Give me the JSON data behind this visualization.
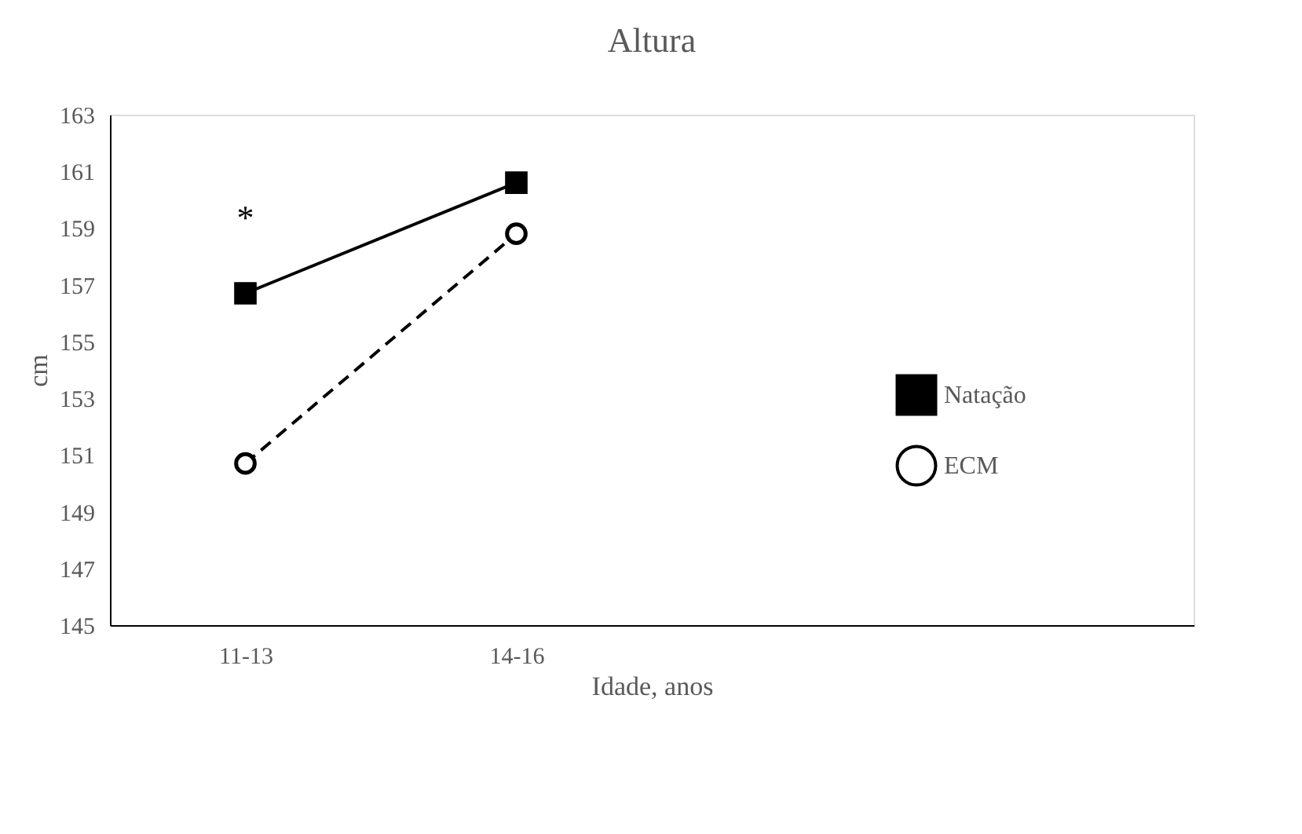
{
  "chart_data": {
    "type": "line",
    "title": "Altura",
    "xlabel": "Idade, anos",
    "ylabel": "cm",
    "categories": [
      "11-13",
      "14-16"
    ],
    "series": [
      {
        "name": "Natação",
        "color": "#000000",
        "values": [
          156.7,
          160.6
        ],
        "line_style": "solid",
        "marker": "square"
      },
      {
        "name": "ECM",
        "color": "#000000",
        "values": [
          150.7,
          158.8
        ],
        "line_style": "dashed",
        "marker": "circle"
      }
    ],
    "ylim": [
      145,
      163
    ],
    "yticks": [
      145,
      147,
      149,
      151,
      153,
      155,
      157,
      159,
      161,
      163
    ],
    "annotations": [
      "*"
    ],
    "grid": false,
    "legend": "right"
  }
}
